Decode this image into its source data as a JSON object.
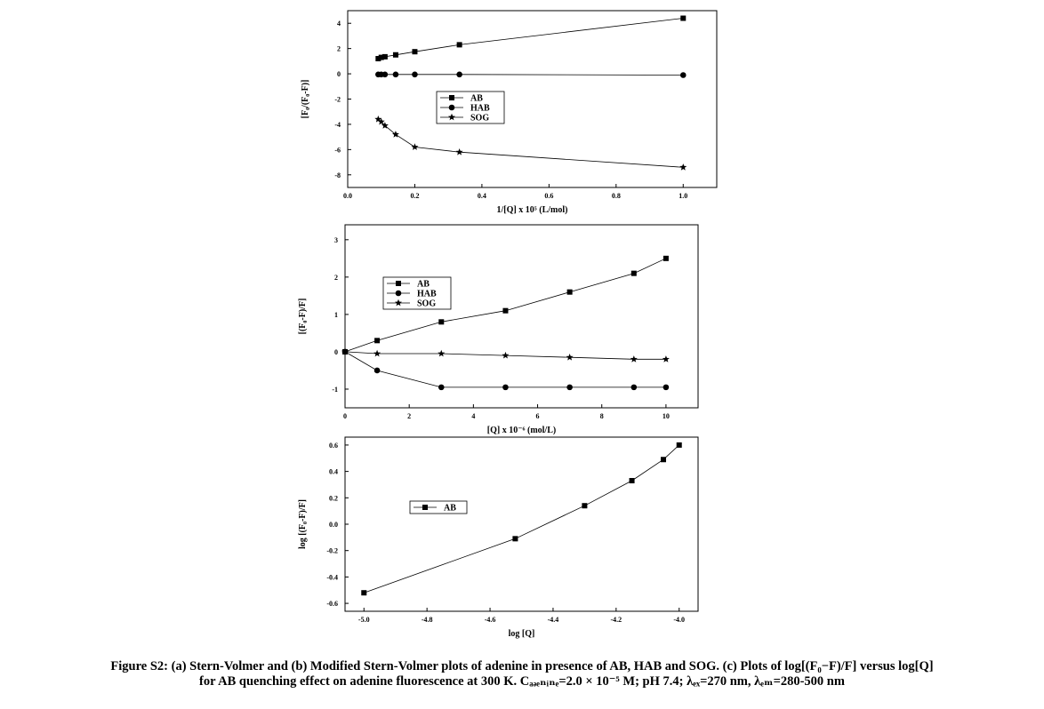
{
  "caption": {
    "line1": "Figure S2: (a) Stern-Volmer and (b) Modified Stern-Volmer plots of adenine in presence of AB, HAB and SOG. (c) Plots of log[(F₀−F)/F] versus log[Q]",
    "line2": "for AB quenching effect on adenine fluorescence at 300 K. Cₐₔₑₙᵢₙₑ=2.0 × 10⁻⁵ M; pH 7.4; λₑₓ=270 nm, λₑₘ=280-500 nm"
  },
  "chart_data": [
    {
      "type": "line",
      "xlabel": "1/[Q] x 10⁵ (L/mol)",
      "ylabel": "[F₀/(F₀-F)]",
      "xlim": [
        0.0,
        1.1
      ],
      "ylim": [
        -9,
        5
      ],
      "xticks": [
        "0.0",
        "0.2",
        "0.4",
        "0.6",
        "0.8",
        "1.0"
      ],
      "xtick_values": [
        0.0,
        0.2,
        0.4,
        0.6,
        0.8,
        1.0
      ],
      "yticks": [
        "-8",
        "-6",
        "-4",
        "-2",
        "0",
        "2",
        "4"
      ],
      "ytick_values": [
        -8,
        -6,
        -4,
        -2,
        0,
        2,
        4
      ],
      "legend_position": "center-left",
      "series": [
        {
          "name": "AB",
          "marker": "square",
          "x": [
            0.091,
            0.1,
            0.111,
            0.143,
            0.2,
            0.333,
            1.0
          ],
          "y": [
            1.2,
            1.3,
            1.35,
            1.5,
            1.75,
            2.3,
            4.4
          ]
        },
        {
          "name": "HAB",
          "marker": "circle",
          "x": [
            0.091,
            0.1,
            0.111,
            0.143,
            0.2,
            0.333,
            1.0
          ],
          "y": [
            -0.05,
            -0.05,
            -0.05,
            -0.05,
            -0.05,
            -0.05,
            -0.1
          ]
        },
        {
          "name": "SOG",
          "marker": "star",
          "x": [
            0.091,
            0.1,
            0.111,
            0.143,
            0.2,
            0.333,
            1.0
          ],
          "y": [
            -3.6,
            -3.8,
            -4.1,
            -4.8,
            -5.8,
            -6.2,
            -7.4
          ]
        }
      ]
    },
    {
      "type": "line",
      "xlabel": "[Q] x 10⁻⁶ (mol/L)",
      "ylabel": "[(F₀-F)/F]",
      "xlim": [
        0,
        11
      ],
      "ylim": [
        -1.5,
        3.4
      ],
      "xticks": [
        "0",
        "2",
        "4",
        "6",
        "8",
        "10"
      ],
      "xtick_values": [
        0,
        2,
        4,
        6,
        8,
        10
      ],
      "yticks": [
        "-1",
        "0",
        "1",
        "2",
        "3"
      ],
      "ytick_values": [
        -1,
        0,
        1,
        2,
        3
      ],
      "legend_position": "top-left",
      "series": [
        {
          "name": "AB",
          "marker": "square",
          "x": [
            0,
            1,
            3,
            5,
            7,
            9,
            10
          ],
          "y": [
            0,
            0.3,
            0.8,
            1.1,
            1.6,
            2.1,
            2.5
          ]
        },
        {
          "name": "HAB",
          "marker": "circle",
          "x": [
            0,
            1,
            3,
            5,
            7,
            9,
            10
          ],
          "y": [
            0,
            -0.5,
            -0.95,
            -0.95,
            -0.95,
            -0.95,
            -0.95
          ]
        },
        {
          "name": "SOG",
          "marker": "star",
          "x": [
            0,
            1,
            3,
            5,
            7,
            9,
            10
          ],
          "y": [
            0,
            -0.05,
            -0.05,
            -0.1,
            -0.15,
            -0.2,
            -0.2
          ]
        }
      ]
    },
    {
      "type": "line",
      "xlabel": "log [Q]",
      "ylabel": "log [(F₀-F)/F]",
      "xlim": [
        -5.06,
        -3.94
      ],
      "ylim": [
        -0.66,
        0.66
      ],
      "xticks": [
        "-5.0",
        "-4.8",
        "-4.6",
        "-4.4",
        "-4.2",
        "-4.0"
      ],
      "xtick_values": [
        -5.0,
        -4.8,
        -4.6,
        -4.4,
        -4.2,
        -4.0
      ],
      "yticks": [
        "-0.6",
        "-0.4",
        "-0.2",
        "0.0",
        "0.2",
        "0.4",
        "0.6"
      ],
      "ytick_values": [
        -0.6,
        -0.4,
        -0.2,
        0.0,
        0.2,
        0.4,
        0.6
      ],
      "legend_position": "top-left",
      "series": [
        {
          "name": "AB",
          "marker": "square",
          "x": [
            -5.0,
            -4.52,
            -4.3,
            -4.15,
            -4.05,
            -4.0
          ],
          "y": [
            -0.52,
            -0.11,
            0.14,
            0.33,
            0.49,
            0.6
          ]
        }
      ]
    }
  ]
}
